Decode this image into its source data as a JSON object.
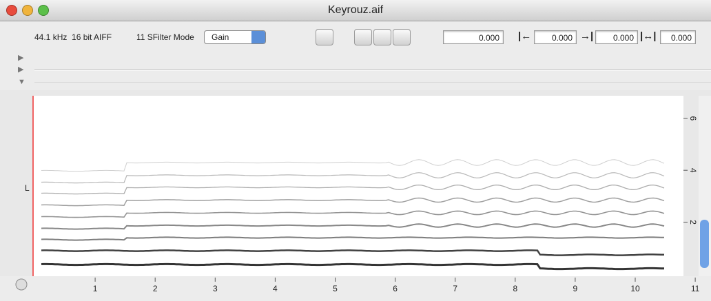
{
  "window": {
    "title": "Keyrouz.aif"
  },
  "toolbar": {
    "format": "44.1 kHz  16 bit AIFF",
    "filter": "11 SFilter Mode",
    "filter_mode": "Gain",
    "position": "0.000",
    "selection_start": "0.000",
    "selection_end": "0.000",
    "selection_length": "0.000"
  },
  "channel_label": "L",
  "time_axis": {
    "ticks": [
      1,
      2,
      3,
      4,
      5,
      6,
      7,
      8,
      9,
      10,
      11
    ]
  },
  "frequency_axis": {
    "ticks": [
      2,
      4,
      6
    ]
  }
}
